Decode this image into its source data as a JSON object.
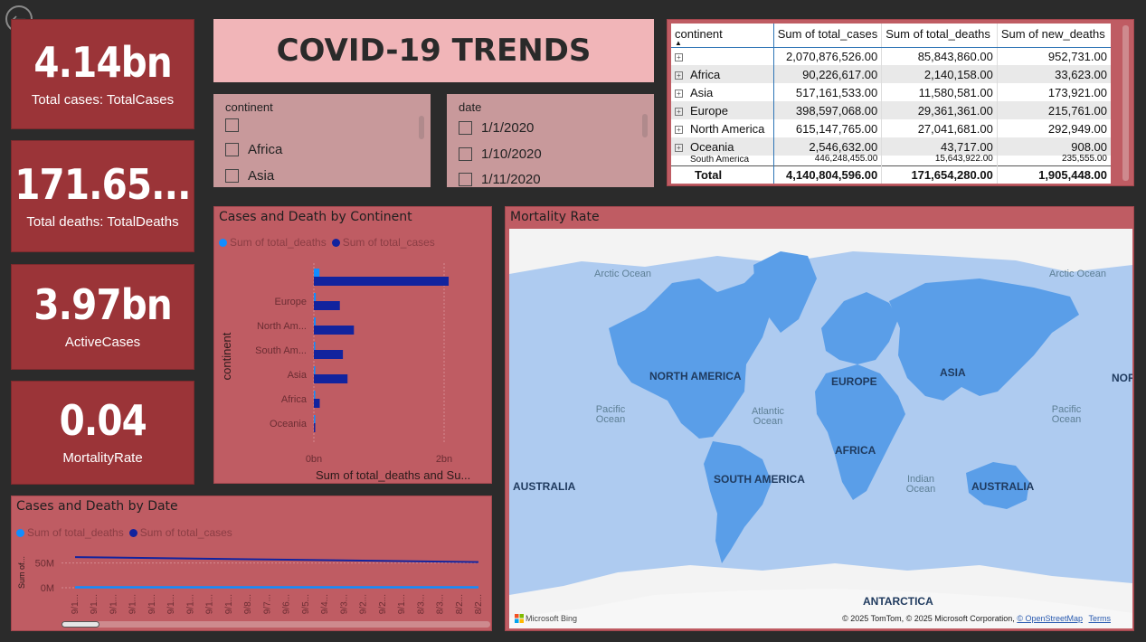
{
  "kpis": [
    {
      "value": "4.14bn",
      "label": "Total cases: TotalCases"
    },
    {
      "value": "171.65...",
      "label": "Total deaths: TotalDeaths"
    },
    {
      "value": "3.97bn",
      "label": "ActiveCases"
    },
    {
      "value": "0.04",
      "label": "MortalityRate"
    }
  ],
  "title": "COVID-19 TRENDS",
  "slicers": {
    "continent": {
      "header": "continent",
      "items": [
        "",
        "Africa",
        "Asia"
      ]
    },
    "date": {
      "header": "date",
      "items": [
        "1/1/2020",
        "1/10/2020",
        "1/11/2020"
      ]
    }
  },
  "table": {
    "columns": [
      "continent",
      "Sum of total_cases",
      "Sum of total_deaths",
      "Sum of new_deaths"
    ],
    "rows": [
      {
        "continent": "",
        "cases": "2,070,876,526.00",
        "deaths": "85,843,860.00",
        "new_deaths": "952,731.00"
      },
      {
        "continent": "Africa",
        "cases": "90,226,617.00",
        "deaths": "2,140,158.00",
        "new_deaths": "33,623.00"
      },
      {
        "continent": "Asia",
        "cases": "517,161,533.00",
        "deaths": "11,580,581.00",
        "new_deaths": "173,921.00"
      },
      {
        "continent": "Europe",
        "cases": "398,597,068.00",
        "deaths": "29,361,361.00",
        "new_deaths": "215,761.00"
      },
      {
        "continent": "North America",
        "cases": "615,147,765.00",
        "deaths": "27,041,681.00",
        "new_deaths": "292,949.00"
      },
      {
        "continent": "Oceania",
        "cases": "2,546,632.00",
        "deaths": "43,717.00",
        "new_deaths": "908.00"
      },
      {
        "continent": "South America",
        "cases": "446,248,455.00",
        "deaths": "15,643,922.00",
        "new_deaths": "235,555.00"
      }
    ],
    "total": {
      "continent": "Total",
      "cases": "4,140,804,596.00",
      "deaths": "171,654,280.00",
      "new_deaths": "1,905,448.00"
    }
  },
  "bar_panel": {
    "title": "Cases and Death by Continent",
    "legend": [
      "Sum of total_deaths",
      "Sum of total_cases"
    ],
    "ylabel": "continent",
    "xlabel": "Sum of total_deaths and Su...",
    "x_ticks": [
      "0bn",
      "2bn"
    ],
    "category_labels": [
      "Europe",
      "North Am...",
      "South Am...",
      "Asia",
      "Africa",
      "Oceania"
    ]
  },
  "line_panel": {
    "title": "Cases and Death by Date",
    "legend": [
      "Sum of total_deaths",
      "Sum of total_cases"
    ],
    "ylabel": "Sum of...",
    "y_ticks": [
      "50M",
      "0M"
    ],
    "x_ticks": [
      "9/1...",
      "9/1...",
      "9/1...",
      "9/1...",
      "9/1...",
      "9/1...",
      "9/1...",
      "9/1...",
      "9/1...",
      "9/8...",
      "9/7...",
      "9/6...",
      "9/5...",
      "9/4...",
      "9/3...",
      "9/2...",
      "9/2...",
      "9/1...",
      "8/3...",
      "8/3...",
      "8/2...",
      "8/2..."
    ]
  },
  "map_panel": {
    "title": "Mortality Rate",
    "oceans": [
      "Arctic Ocean",
      "Arctic Ocean",
      "Pacific Ocean",
      "Atlantic Ocean",
      "Pacific Ocean",
      "Indian Ocean"
    ],
    "regions": [
      "NORTH AMERICA",
      "EUROPE",
      "ASIA",
      "AFRICA",
      "SOUTH AMERICA",
      "AUSTRALIA",
      "AUSTRALIA",
      "ANTARCTICA",
      "NOR"
    ],
    "brand": "Microsoft Bing",
    "attribution": "© 2025 TomTom, © 2025 Microsoft Corporation,",
    "osm_link": "© OpenStreetMap",
    "terms_link": "Terms"
  },
  "colors": {
    "kpi_bg": "#9b3438",
    "panel_bg": "#bf5c63",
    "title_bg": "#f1b5b8",
    "deaths_series": "#118dff",
    "cases_series": "#12239e",
    "map_ocean": "#aecbf0",
    "map_land": "#5a9ee8"
  },
  "chart_data": [
    {
      "type": "bar",
      "title": "Cases and Death by Continent",
      "xlabel": "Sum of total_deaths and Su...",
      "ylabel": "continent",
      "categories": [
        "",
        "Europe",
        "North America",
        "South America",
        "Asia",
        "Africa",
        "Oceania"
      ],
      "series": [
        {
          "name": "Sum of total_deaths",
          "values": [
            0.0858,
            0.0294,
            0.027,
            0.0156,
            0.0116,
            0.0021,
            4e-05
          ]
        },
        {
          "name": "Sum of total_cases",
          "values": [
            2.07,
            0.399,
            0.615,
            0.446,
            0.517,
            0.09,
            0.0025
          ]
        }
      ],
      "unit": "bn",
      "xlim": [
        0,
        2.5
      ]
    },
    {
      "type": "line",
      "title": "Cases and Death by Date",
      "ylabel": "Sum of...",
      "series": [
        {
          "name": "Sum of total_deaths",
          "values": [
            1,
            1
          ]
        },
        {
          "name": "Sum of total_cases",
          "values": [
            62,
            52
          ]
        }
      ],
      "unit": "M",
      "ylim": [
        0,
        75
      ]
    }
  ]
}
